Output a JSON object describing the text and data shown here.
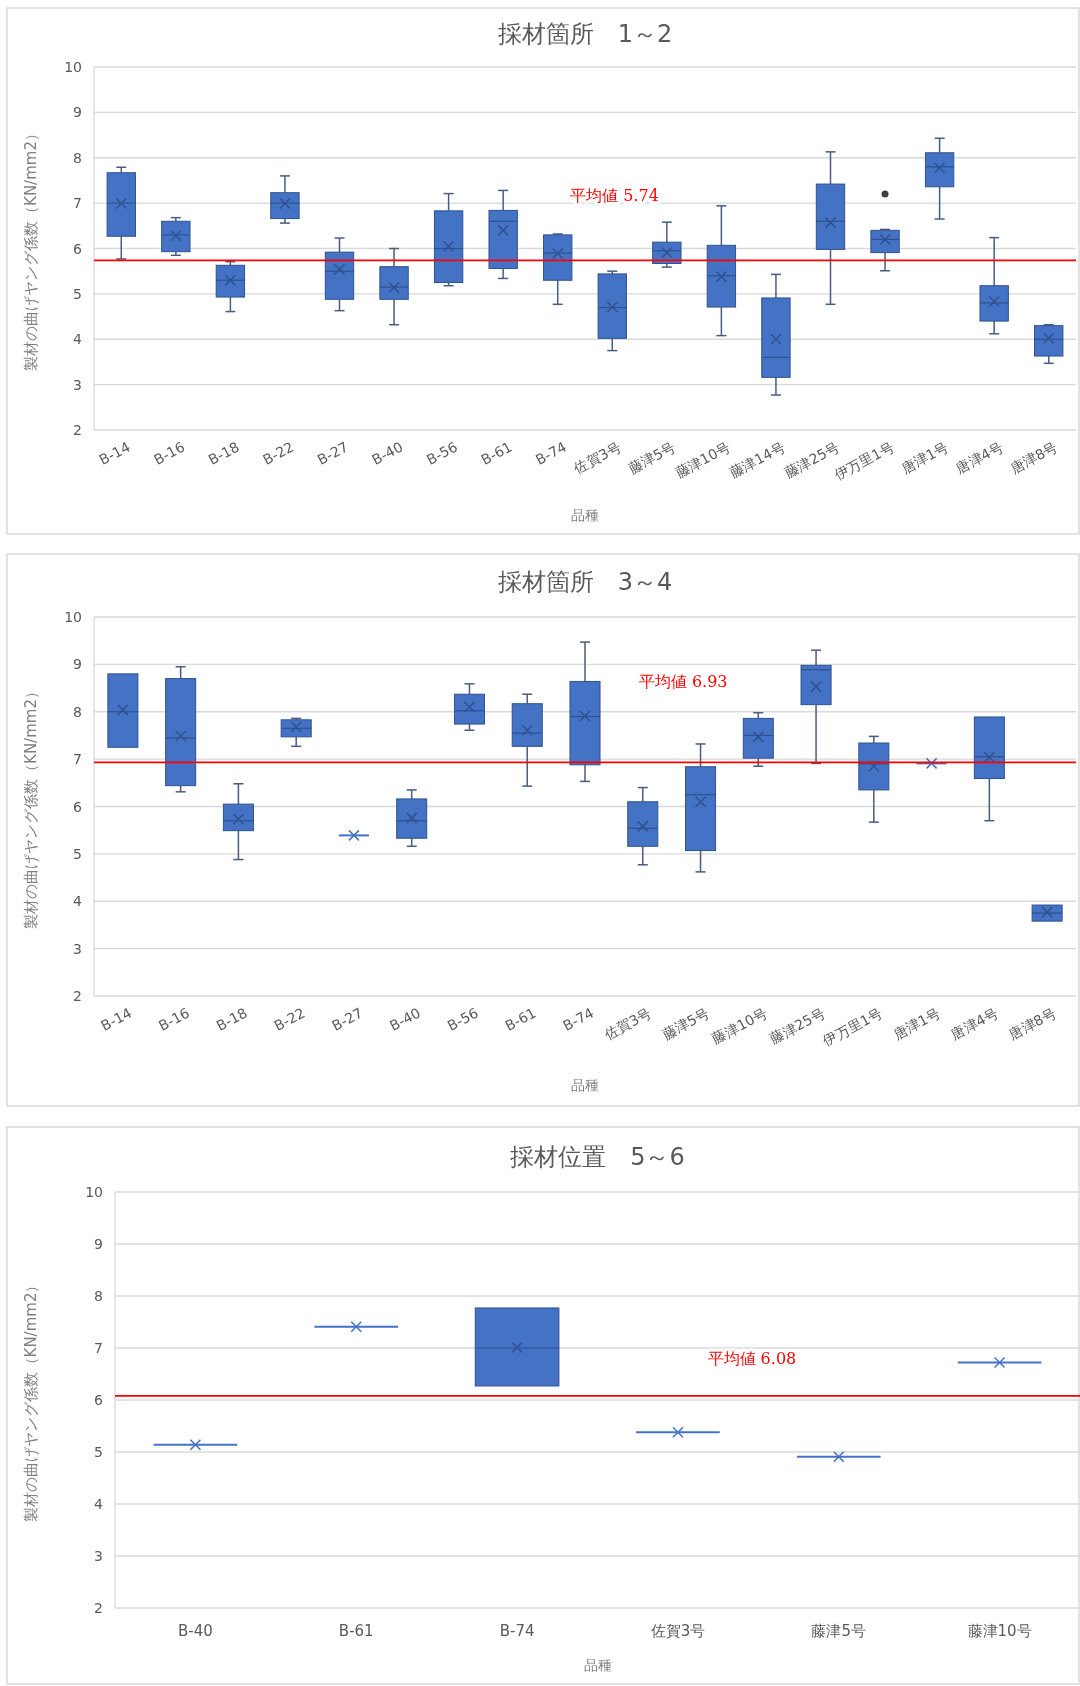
{
  "chart_data": [
    {
      "type": "box",
      "title": "採材箇所　1～2",
      "xlabel": "品種",
      "ylabel": "製材の曲げヤング係数（KN/mm2）",
      "color": "#4472c4",
      "ylim": [
        2,
        10
      ],
      "yticks": [
        2,
        3,
        4,
        5,
        6,
        7,
        8,
        9,
        10
      ],
      "grid": "y",
      "categories": [
        "B-14",
        "B-16",
        "B-18",
        "B-22",
        "B-27",
        "B-40",
        "B-56",
        "B-61",
        "B-74",
        "佐賀3号",
        "藤津5号",
        "藤津10号",
        "藤津14号",
        "藤津25号",
        "伊万里1号",
        "唐津1号",
        "唐津4号",
        "唐津8号"
      ],
      "boxes": [
        {
          "low": 5.77,
          "q1": 6.27,
          "median": 7.0,
          "q3": 7.67,
          "high": 7.79,
          "mean": 6.99
        },
        {
          "low": 5.85,
          "q1": 5.93,
          "median": 6.3,
          "q3": 6.6,
          "high": 6.68,
          "mean": 6.28
        },
        {
          "low": 4.61,
          "q1": 4.93,
          "median": 5.3,
          "q3": 5.63,
          "high": 5.71,
          "mean": 5.3
        },
        {
          "low": 6.56,
          "q1": 6.66,
          "median": 7.0,
          "q3": 7.23,
          "high": 7.6,
          "mean": 6.99
        },
        {
          "low": 4.63,
          "q1": 4.88,
          "median": 5.5,
          "q3": 5.92,
          "high": 6.23,
          "mean": 5.54
        },
        {
          "low": 4.32,
          "q1": 4.88,
          "median": 5.15,
          "q3": 5.6,
          "high": 6.0,
          "mean": 5.14
        },
        {
          "low": 5.18,
          "q1": 5.25,
          "median": 6.0,
          "q3": 6.83,
          "high": 7.21,
          "mean": 6.05
        },
        {
          "low": 5.34,
          "q1": 5.56,
          "median": 6.6,
          "q3": 6.84,
          "high": 7.28,
          "mean": 6.4
        },
        {
          "low": 4.77,
          "q1": 5.3,
          "median": 5.9,
          "q3": 6.3,
          "high": 6.32,
          "mean": 5.89
        },
        {
          "low": 3.75,
          "q1": 4.02,
          "median": 4.7,
          "q3": 5.44,
          "high": 5.5,
          "mean": 4.71
        },
        {
          "low": 5.59,
          "q1": 5.67,
          "median": 5.95,
          "q3": 6.14,
          "high": 6.58,
          "mean": 5.91
        },
        {
          "low": 4.08,
          "q1": 4.71,
          "median": 5.4,
          "q3": 6.07,
          "high": 6.94,
          "mean": 5.38
        },
        {
          "low": 2.77,
          "q1": 3.16,
          "median": 3.6,
          "q3": 4.91,
          "high": 5.43,
          "mean": 4.0
        },
        {
          "low": 4.77,
          "q1": 5.98,
          "median": 6.6,
          "q3": 7.42,
          "high": 8.13,
          "mean": 6.57
        },
        {
          "low": 5.51,
          "q1": 5.91,
          "median": 6.2,
          "q3": 6.4,
          "high": 6.42,
          "mean": 6.2,
          "outliers": [
            7.2
          ]
        },
        {
          "low": 6.65,
          "q1": 7.36,
          "median": 7.8,
          "q3": 8.11,
          "high": 8.43,
          "mean": 7.78
        },
        {
          "low": 4.12,
          "q1": 4.4,
          "median": 4.8,
          "q3": 5.18,
          "high": 6.24,
          "mean": 4.83
        },
        {
          "low": 3.47,
          "q1": 3.63,
          "median": 4.0,
          "q3": 4.3,
          "high": 4.32,
          "mean": 4.02
        }
      ],
      "ref_lines": [
        {
          "axis": "y",
          "value": 5.74,
          "label": "平均値 5.74",
          "color": "#ff0000"
        }
      ]
    },
    {
      "type": "box",
      "title": "採材箇所　3～4",
      "xlabel": "品種",
      "ylabel": "製材の曲げヤング係数（KN/mm2）",
      "color": "#4472c4",
      "ylim": [
        2,
        10
      ],
      "yticks": [
        2,
        3,
        4,
        5,
        6,
        7,
        8,
        9,
        10
      ],
      "grid": "y",
      "categories": [
        "B-14",
        "B-16",
        "B-18",
        "B-22",
        "B-27",
        "B-40",
        "B-56",
        "B-61",
        "B-74",
        "佐賀3号",
        "藤津5号",
        "藤津10号",
        "藤津25号",
        "伊万里1号",
        "唐津1号",
        "唐津4号",
        "唐津8号"
      ],
      "boxes": [
        {
          "low": 7.25,
          "q1": 7.25,
          "median": 8.0,
          "q3": 8.8,
          "high": 8.8,
          "mean": 8.04
        },
        {
          "low": 6.31,
          "q1": 6.44,
          "median": 7.45,
          "q3": 8.7,
          "high": 8.95,
          "mean": 7.49
        },
        {
          "low": 4.88,
          "q1": 5.49,
          "median": 5.7,
          "q3": 6.05,
          "high": 6.48,
          "mean": 5.73
        },
        {
          "low": 7.27,
          "q1": 7.47,
          "median": 7.65,
          "q3": 7.83,
          "high": 7.86,
          "mean": 7.68
        },
        {
          "low": 5.39,
          "q1": 5.39,
          "median": 5.39,
          "q3": 5.39,
          "high": 5.39,
          "mean": 5.39
        },
        {
          "low": 5.16,
          "q1": 5.33,
          "median": 5.7,
          "q3": 6.16,
          "high": 6.35,
          "mean": 5.76
        },
        {
          "low": 7.61,
          "q1": 7.74,
          "median": 8.02,
          "q3": 8.37,
          "high": 8.59,
          "mean": 8.1
        },
        {
          "low": 6.43,
          "q1": 7.27,
          "median": 7.55,
          "q3": 8.17,
          "high": 8.37,
          "mean": 7.61
        },
        {
          "low": 6.53,
          "q1": 6.88,
          "median": 7.9,
          "q3": 8.64,
          "high": 9.47,
          "mean": 7.91
        },
        {
          "low": 4.77,
          "q1": 5.16,
          "median": 5.54,
          "q3": 6.1,
          "high": 6.4,
          "mean": 5.58
        },
        {
          "low": 4.62,
          "q1": 5.07,
          "median": 6.25,
          "q3": 6.84,
          "high": 7.32,
          "mean": 6.1
        },
        {
          "low": 6.85,
          "q1": 7.02,
          "median": 7.5,
          "q3": 7.86,
          "high": 7.98,
          "mean": 7.47
        },
        {
          "low": 6.91,
          "q1": 8.15,
          "median": 8.89,
          "q3": 8.98,
          "high": 9.3,
          "mean": 8.53
        },
        {
          "low": 5.67,
          "q1": 6.35,
          "median": 6.9,
          "q3": 7.34,
          "high": 7.48,
          "mean": 6.85
        },
        {
          "low": 6.91,
          "q1": 6.91,
          "median": 6.91,
          "q3": 6.91,
          "high": 6.91,
          "mean": 6.91
        },
        {
          "low": 5.7,
          "q1": 6.59,
          "median": 7.05,
          "q3": 7.89,
          "high": 7.89,
          "mean": 7.04
        },
        {
          "low": 3.58,
          "q1": 3.58,
          "median": 3.75,
          "q3": 3.92,
          "high": 3.92,
          "mean": 3.77
        }
      ],
      "ref_lines": [
        {
          "axis": "y",
          "value": 6.93,
          "label": "平均値 6.93",
          "color": "#ff0000"
        }
      ]
    },
    {
      "type": "box",
      "title": "採材位置　5～6",
      "xlabel": "品種",
      "ylabel": "製材の曲げヤング係数（KN/mm2）",
      "color": "#4472c4",
      "ylim": [
        2,
        10
      ],
      "yticks": [
        2,
        3,
        4,
        5,
        6,
        7,
        8,
        9,
        10
      ],
      "grid": "y",
      "categories": [
        "B-40",
        "B-61",
        "B-74",
        "佐賀3号",
        "藤津5号",
        "藤津10号"
      ],
      "boxes": [
        {
          "low": 5.14,
          "q1": 5.14,
          "median": 5.14,
          "q3": 5.14,
          "high": 5.14,
          "mean": 5.14
        },
        {
          "low": 7.41,
          "q1": 7.41,
          "median": 7.41,
          "q3": 7.41,
          "high": 7.41,
          "mean": 7.41
        },
        {
          "low": 6.27,
          "q1": 6.27,
          "median": 7.0,
          "q3": 7.77,
          "high": 7.77,
          "mean": 7.01
        },
        {
          "low": 5.38,
          "q1": 5.38,
          "median": 5.38,
          "q3": 5.38,
          "high": 5.38,
          "mean": 5.38
        },
        {
          "low": 4.91,
          "q1": 4.91,
          "median": 4.91,
          "q3": 4.91,
          "high": 4.91,
          "mean": 4.91
        },
        {
          "low": 6.72,
          "q1": 6.72,
          "median": 6.72,
          "q3": 6.72,
          "high": 6.72,
          "mean": 6.72
        }
      ],
      "ref_lines": [
        {
          "axis": "y",
          "value": 6.08,
          "label": "平均値 6.08",
          "color": "#ff0000"
        }
      ]
    }
  ]
}
